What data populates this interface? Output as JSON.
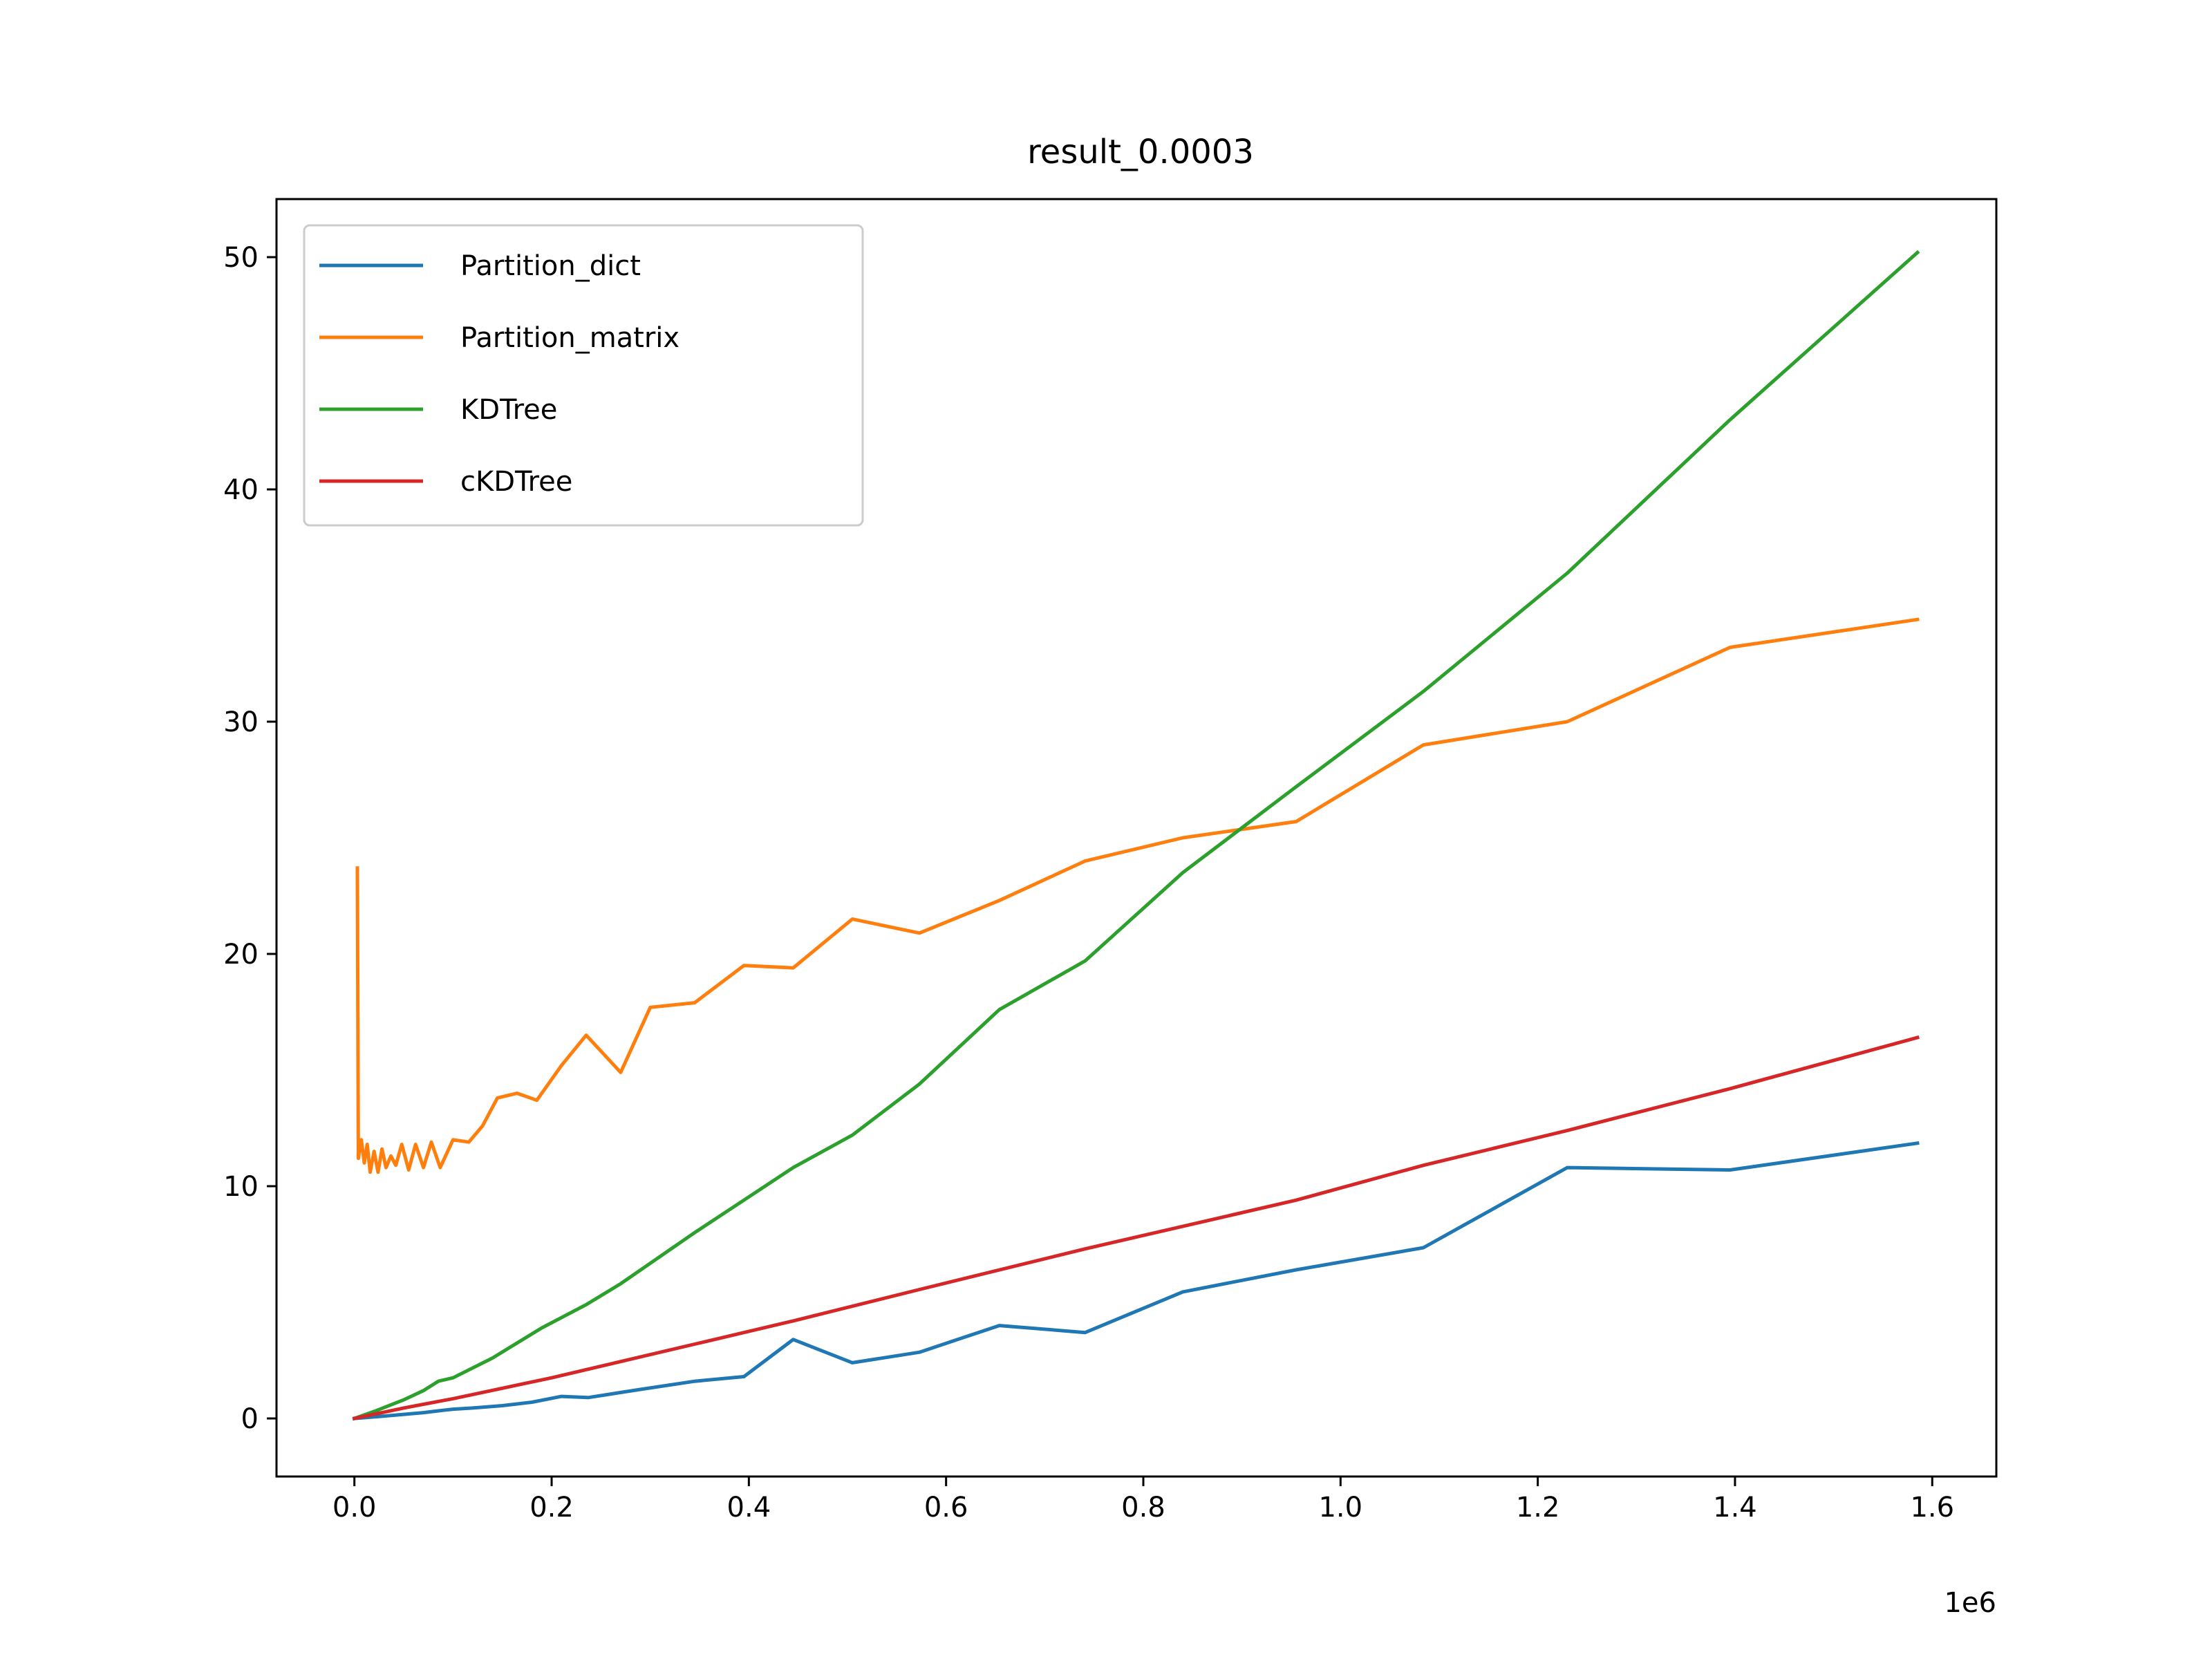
{
  "chart_data": {
    "type": "line",
    "title": "result_0.0003",
    "xlabel": "",
    "ylabel": "",
    "x_offset_label": "1e6",
    "xlim": [
      -0.079,
      1.665
    ],
    "ylim": [
      -2.5,
      52.5
    ],
    "x_ticks": [
      0.0,
      0.2,
      0.4,
      0.6,
      0.8,
      1.0,
      1.2,
      1.4,
      1.6
    ],
    "x_tick_labels": [
      "0.0",
      "0.2",
      "0.4",
      "0.6",
      "0.8",
      "1.0",
      "1.2",
      "1.4",
      "1.6"
    ],
    "y_ticks": [
      0,
      10,
      20,
      30,
      40,
      50
    ],
    "y_tick_labels": [
      "0",
      "10",
      "20",
      "30",
      "40",
      "50"
    ],
    "grid": false,
    "legend_position": "top-left",
    "series": [
      {
        "name": "Partition_dict",
        "color": "#1f77b4",
        "points": [
          [
            0.0,
            0.0
          ],
          [
            0.03,
            0.1
          ],
          [
            0.07,
            0.25
          ],
          [
            0.08,
            0.3
          ],
          [
            0.09,
            0.35
          ],
          [
            0.1,
            0.4
          ],
          [
            0.12,
            0.45
          ],
          [
            0.15,
            0.55
          ],
          [
            0.18,
            0.7
          ],
          [
            0.21,
            0.95
          ],
          [
            0.237,
            0.9
          ],
          [
            0.29,
            1.25
          ],
          [
            0.345,
            1.6
          ],
          [
            0.395,
            1.8
          ],
          [
            0.445,
            3.4
          ],
          [
            0.505,
            2.4
          ],
          [
            0.573,
            2.85
          ],
          [
            0.654,
            4.0
          ],
          [
            0.741,
            3.7
          ],
          [
            0.84,
            5.45
          ],
          [
            0.955,
            6.4
          ],
          [
            1.084,
            7.35
          ],
          [
            1.23,
            10.8
          ],
          [
            1.395,
            10.7
          ],
          [
            1.585,
            11.85
          ]
        ]
      },
      {
        "name": "Partition_matrix",
        "color": "#ff7f0e",
        "points": [
          [
            0.003,
            23.7
          ],
          [
            0.004,
            11.2
          ],
          [
            0.007,
            12.0
          ],
          [
            0.01,
            11.0
          ],
          [
            0.013,
            11.8
          ],
          [
            0.016,
            10.6
          ],
          [
            0.02,
            11.5
          ],
          [
            0.024,
            10.6
          ],
          [
            0.028,
            11.6
          ],
          [
            0.032,
            10.8
          ],
          [
            0.037,
            11.3
          ],
          [
            0.042,
            10.9
          ],
          [
            0.048,
            11.8
          ],
          [
            0.055,
            10.7
          ],
          [
            0.062,
            11.8
          ],
          [
            0.07,
            10.8
          ],
          [
            0.078,
            11.9
          ],
          [
            0.087,
            10.8
          ],
          [
            0.1,
            12.0
          ],
          [
            0.116,
            11.9
          ],
          [
            0.13,
            12.6
          ],
          [
            0.145,
            13.8
          ],
          [
            0.165,
            14.0
          ],
          [
            0.185,
            13.7
          ],
          [
            0.21,
            15.2
          ],
          [
            0.235,
            16.5
          ],
          [
            0.27,
            14.9
          ],
          [
            0.3,
            17.7
          ],
          [
            0.345,
            17.9
          ],
          [
            0.395,
            19.5
          ],
          [
            0.445,
            19.4
          ],
          [
            0.505,
            21.5
          ],
          [
            0.573,
            20.9
          ],
          [
            0.654,
            22.3
          ],
          [
            0.741,
            24.0
          ],
          [
            0.84,
            25.0
          ],
          [
            0.955,
            25.7
          ],
          [
            1.084,
            29.0
          ],
          [
            1.23,
            30.0
          ],
          [
            1.395,
            33.2
          ],
          [
            1.585,
            34.4
          ]
        ]
      },
      {
        "name": "KDTree",
        "color": "#2ca02c",
        "points": [
          [
            0.0,
            0.0
          ],
          [
            0.02,
            0.3
          ],
          [
            0.05,
            0.8
          ],
          [
            0.07,
            1.2
          ],
          [
            0.085,
            1.6
          ],
          [
            0.1,
            1.75
          ],
          [
            0.14,
            2.6
          ],
          [
            0.19,
            3.9
          ],
          [
            0.235,
            4.9
          ],
          [
            0.27,
            5.8
          ],
          [
            0.345,
            8.0
          ],
          [
            0.395,
            9.4
          ],
          [
            0.445,
            10.8
          ],
          [
            0.505,
            12.2
          ],
          [
            0.573,
            14.4
          ],
          [
            0.654,
            17.6
          ],
          [
            0.741,
            19.7
          ],
          [
            0.84,
            23.5
          ],
          [
            0.955,
            27.2
          ],
          [
            1.084,
            31.3
          ],
          [
            1.23,
            36.4
          ],
          [
            1.395,
            43.0
          ],
          [
            1.585,
            50.2
          ]
        ]
      },
      {
        "name": "cKDTree",
        "color": "#d62728",
        "points": [
          [
            0.0,
            0.0
          ],
          [
            0.05,
            0.45
          ],
          [
            0.1,
            0.85
          ],
          [
            0.15,
            1.3
          ],
          [
            0.2,
            1.75
          ],
          [
            0.27,
            2.45
          ],
          [
            0.345,
            3.2
          ],
          [
            0.445,
            4.2
          ],
          [
            0.573,
            5.55
          ],
          [
            0.741,
            7.3
          ],
          [
            0.955,
            9.4
          ],
          [
            1.084,
            10.9
          ],
          [
            1.23,
            12.4
          ],
          [
            1.395,
            14.2
          ],
          [
            1.585,
            16.4
          ]
        ]
      }
    ]
  }
}
